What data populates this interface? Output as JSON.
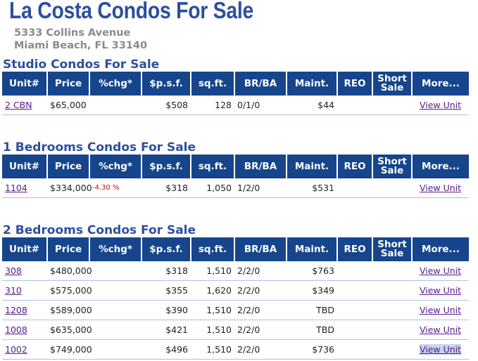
{
  "page": {
    "title": "La Costa Condos For Sale",
    "address_line1": "5333 Collins Avenue",
    "address_line2": "Miami Beach, FL 33140"
  },
  "table_headers": {
    "unit": "Unit#",
    "price": "Price",
    "chg": "%chg*",
    "psf": "$p.s.f.",
    "sqft": "sq.ft.",
    "brba": "BR/BA",
    "maint": "Maint.",
    "reo": "REO",
    "short_sale_1": "Short",
    "short_sale_2": "Sale",
    "more": "More..."
  },
  "sections": [
    {
      "title": "Studio Condos For Sale",
      "rows": [
        {
          "unit": "2 CBN",
          "price": "$65,000",
          "chg": "",
          "psf": "$508",
          "sqft": "128",
          "brba": "0/1/0",
          "maint": "$44",
          "reo": "",
          "short": "",
          "link": "View Unit"
        }
      ]
    },
    {
      "title": "1 Bedrooms Condos For Sale",
      "rows": [
        {
          "unit": "1104",
          "price": "$334,000",
          "chg": "-4.30 %",
          "psf": "$318",
          "sqft": "1,050",
          "brba": "1/2/0",
          "maint": "$531",
          "reo": "",
          "short": "",
          "link": "View Unit"
        }
      ]
    },
    {
      "title": "2 Bedrooms Condos For Sale",
      "rows": [
        {
          "unit": "308",
          "price": "$480,000",
          "chg": "",
          "psf": "$318",
          "sqft": "1,510",
          "brba": "2/2/0",
          "maint": "$763",
          "reo": "",
          "short": "",
          "link": "View Unit"
        },
        {
          "unit": "310",
          "price": "$575,000",
          "chg": "",
          "psf": "$355",
          "sqft": "1,620",
          "brba": "2/2/0",
          "maint": "$349",
          "reo": "",
          "short": "",
          "link": "View Unit"
        },
        {
          "unit": "1208",
          "price": "$589,000",
          "chg": "",
          "psf": "$390",
          "sqft": "1,510",
          "brba": "2/2/0",
          "maint": "TBD",
          "reo": "",
          "short": "",
          "link": "View Unit"
        },
        {
          "unit": "1008",
          "price": "$635,000",
          "chg": "",
          "psf": "$421",
          "sqft": "1,510",
          "brba": "2/2/0",
          "maint": "TBD",
          "reo": "",
          "short": "",
          "link": "View Unit"
        },
        {
          "unit": "1002",
          "price": "$749,000",
          "chg": "",
          "psf": "$496",
          "sqft": "1,510",
          "brba": "2/2/0",
          "maint": "$736",
          "reo": "",
          "short": "",
          "link": "View Unit"
        }
      ]
    }
  ]
}
